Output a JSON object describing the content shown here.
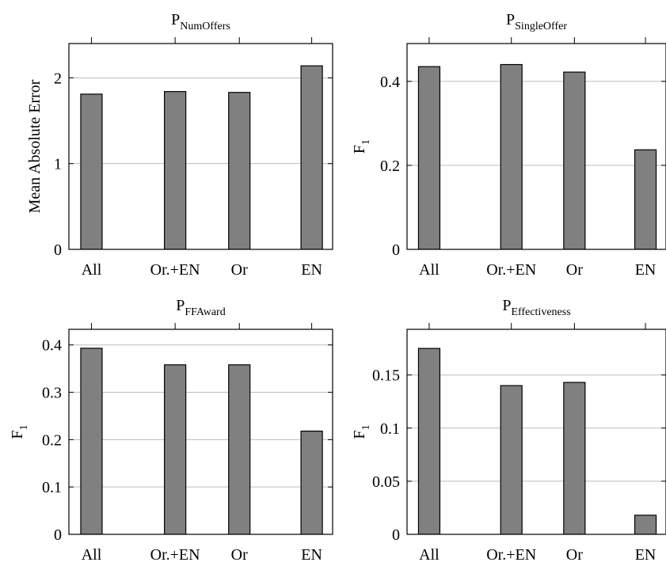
{
  "chart_data": [
    {
      "type": "bar",
      "title": "P",
      "title_sub": "NumOffers",
      "ylabel": "Mean Absolute Error",
      "ylabel_sub": "",
      "categories": [
        "All",
        "Or.+EN",
        "Or",
        "EN"
      ],
      "values": [
        1.81,
        1.84,
        1.83,
        2.14
      ],
      "ylim": [
        0,
        2.4
      ],
      "yticks": [
        0,
        1,
        2
      ],
      "ytick_labels": [
        "0",
        "1",
        "2"
      ],
      "grid": true,
      "bar_color": "#808080"
    },
    {
      "type": "bar",
      "title": "P",
      "title_sub": "SingleOffer",
      "ylabel": "F",
      "ylabel_sub": "1",
      "categories": [
        "All",
        "Or.+EN",
        "Or",
        "EN"
      ],
      "values": [
        0.435,
        0.44,
        0.422,
        0.237
      ],
      "ylim": [
        0,
        0.49
      ],
      "yticks": [
        0,
        0.2,
        0.4
      ],
      "ytick_labels": [
        "0",
        "0.2",
        "0.4"
      ],
      "grid": true,
      "bar_color": "#808080"
    },
    {
      "type": "bar",
      "title": "P",
      "title_sub": "FFAward",
      "ylabel": "F",
      "ylabel_sub": "1",
      "categories": [
        "All",
        "Or.+EN",
        "Or",
        "EN"
      ],
      "values": [
        0.393,
        0.358,
        0.358,
        0.218
      ],
      "ylim": [
        0,
        0.433
      ],
      "yticks": [
        0,
        0.1,
        0.2,
        0.3,
        0.4
      ],
      "ytick_labels": [
        "0",
        "0.1",
        "0.2",
        "0.3",
        "0.4"
      ],
      "grid": true,
      "bar_color": "#808080"
    },
    {
      "type": "bar",
      "title": "P",
      "title_sub": "Effectiveness",
      "ylabel": "F",
      "ylabel_sub": "1",
      "categories": [
        "All",
        "Or.+EN",
        "Or",
        "EN"
      ],
      "values": [
        0.175,
        0.14,
        0.143,
        0.018
      ],
      "ylim": [
        0,
        0.193
      ],
      "yticks": [
        0,
        0.05,
        0.1,
        0.15
      ],
      "ytick_labels": [
        "0",
        "0.05",
        "0.1",
        "0.15"
      ],
      "grid": true,
      "bar_color": "#808080"
    }
  ]
}
